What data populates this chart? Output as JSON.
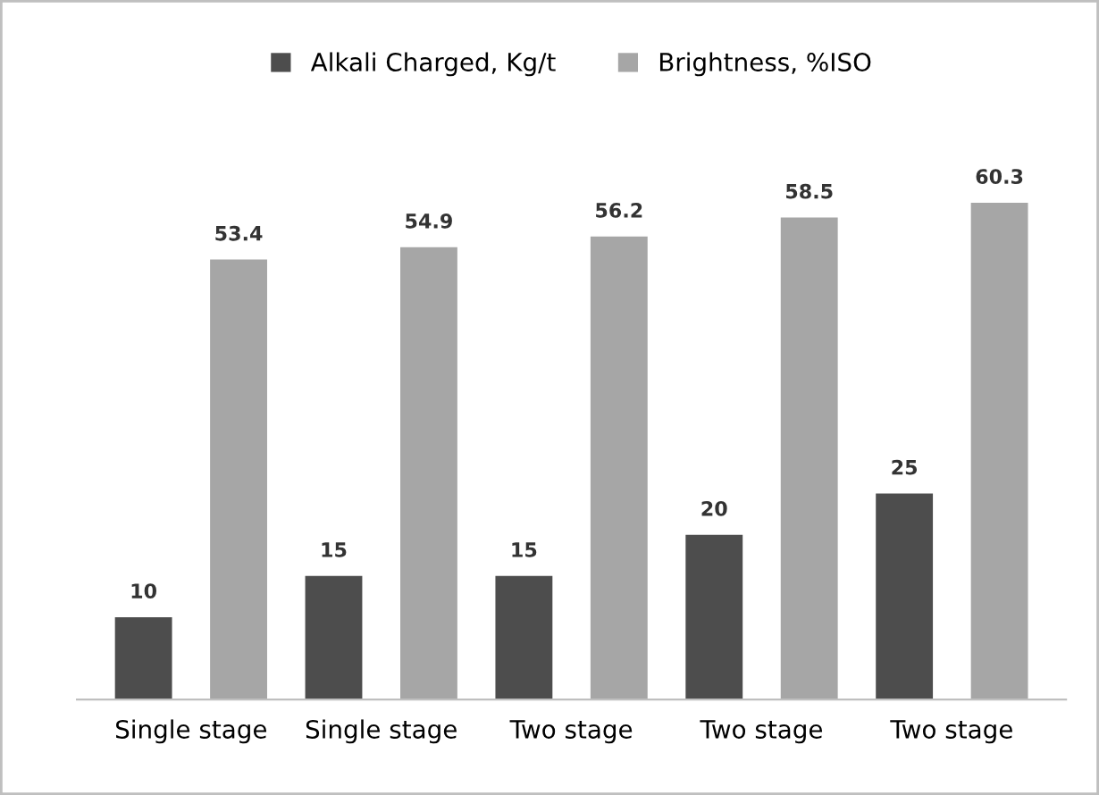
{
  "chart_data": {
    "type": "bar",
    "categories": [
      "Single stage",
      "Single stage",
      "Two stage",
      "Two stage",
      "Two stage"
    ],
    "series": [
      {
        "name": "Alkali Charged, Kg/t",
        "color": "#4d4d4d",
        "values": [
          10,
          15,
          15,
          20,
          25
        ]
      },
      {
        "name": "Brightness, %ISO",
        "color": "#a6a6a6",
        "values": [
          53.4,
          54.9,
          56.2,
          58.5,
          60.3
        ]
      }
    ],
    "data_labels": true,
    "legend": "top"
  }
}
